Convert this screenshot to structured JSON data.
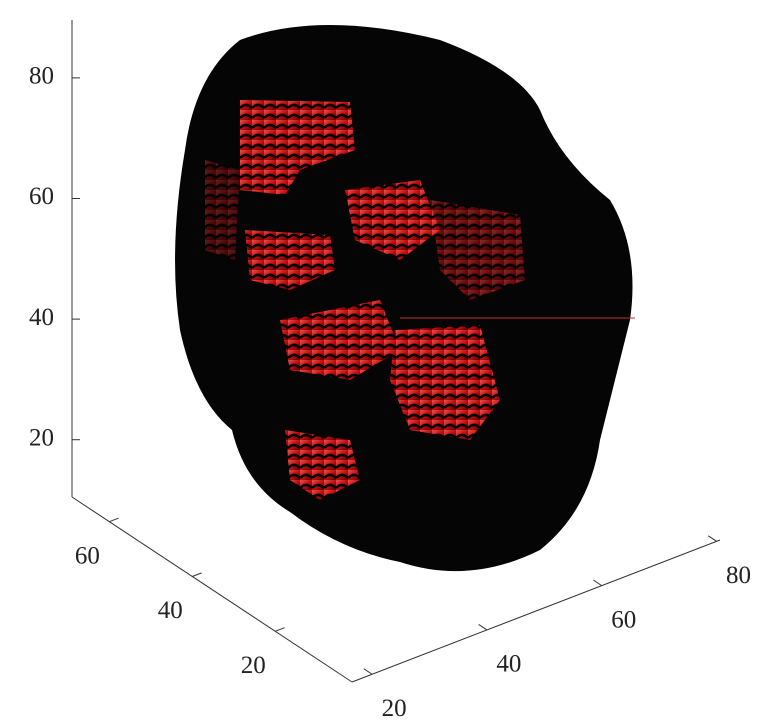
{
  "chart_data": {
    "type": "isosurface",
    "xlim": [
      16.5,
      80.6
    ],
    "xticks": [
      20,
      40,
      60,
      80
    ],
    "ylim": [
      1.5,
      69
    ],
    "yticks": [
      20,
      40,
      60
    ],
    "zlim": [
      10.5,
      89.6
    ],
    "zticks": [
      20,
      40,
      60,
      80
    ],
    "color": "#e01010"
  }
}
